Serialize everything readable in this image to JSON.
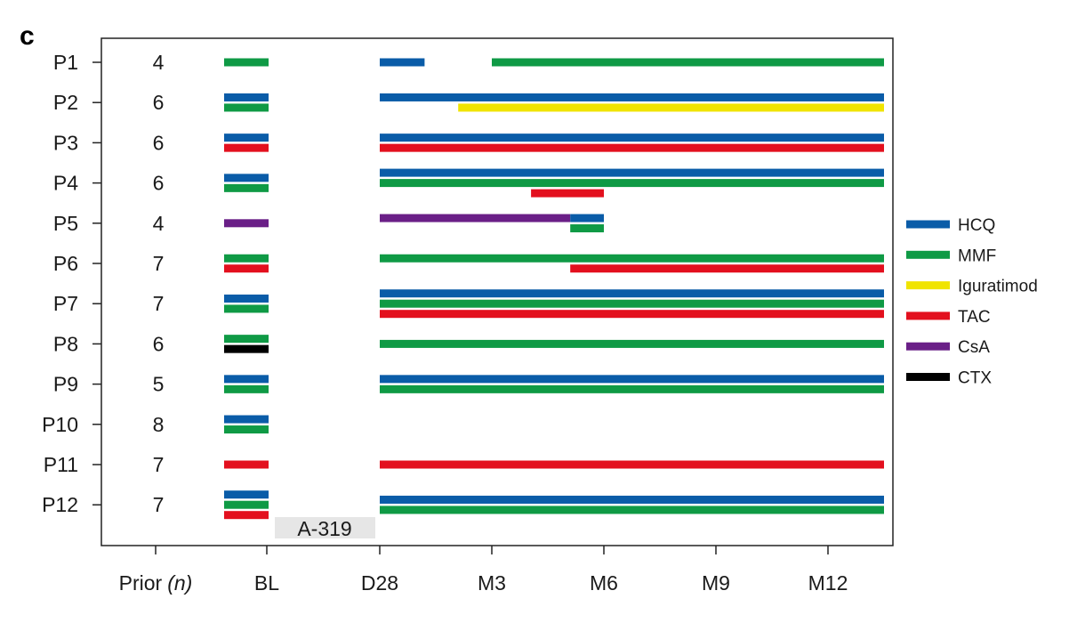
{
  "panel_label": "c",
  "chart_data": {
    "type": "timeline",
    "x_ticks": [
      "BL",
      "D28",
      "M3",
      "M6",
      "M9",
      "M12"
    ],
    "prior_label": "Prior",
    "prior_var": "(n)",
    "intervention_band": {
      "label": "A-319",
      "from": "BL",
      "to": "D28"
    },
    "colors": {
      "HCQ": "#0a5ca8",
      "MMF": "#0f9a45",
      "Iguratimod": "#f0e400",
      "TAC": "#e3101e",
      "CsA": "#6a1f87",
      "CTX": "#000000"
    },
    "legend": [
      "HCQ",
      "MMF",
      "Iguratimod",
      "TAC",
      "CsA",
      "CTX"
    ],
    "patients": [
      {
        "id": "P1",
        "prior_n": "4",
        "baseline": [
          "MMF"
        ],
        "treatments": [
          {
            "drug": "HCQ",
            "start": 0,
            "end": 0.4
          },
          {
            "drug": "MMF",
            "start": 1.0,
            "end": 4.5
          }
        ]
      },
      {
        "id": "P2",
        "prior_n": "6",
        "baseline": [
          "HCQ",
          "MMF"
        ],
        "treatments": [
          {
            "drug": "HCQ",
            "start": 0,
            "end": 4.5
          },
          {
            "drug": "Iguratimod",
            "start": 0.7,
            "end": 4.5
          }
        ]
      },
      {
        "id": "P3",
        "prior_n": "6",
        "baseline": [
          "HCQ",
          "TAC"
        ],
        "treatments": [
          {
            "drug": "HCQ",
            "start": 0,
            "end": 4.5
          },
          {
            "drug": "TAC",
            "start": 0,
            "end": 4.5
          }
        ]
      },
      {
        "id": "P4",
        "prior_n": "6",
        "baseline": [
          "HCQ",
          "MMF"
        ],
        "treatments": [
          {
            "drug": "HCQ",
            "start": 0,
            "end": 4.5
          },
          {
            "drug": "MMF",
            "start": 0,
            "end": 4.5
          },
          {
            "drug": "TAC",
            "start": 1.35,
            "end": 2.0
          }
        ]
      },
      {
        "id": "P5",
        "prior_n": "4",
        "baseline": [
          "CsA"
        ],
        "treatments": [
          {
            "drug": "CsA",
            "start": 0,
            "end": 1.7
          },
          {
            "drug": "HCQ",
            "start": 1.7,
            "end": 2.0
          },
          {
            "drug": "MMF",
            "start": 1.7,
            "end": 2.0
          }
        ]
      },
      {
        "id": "P6",
        "prior_n": "7",
        "baseline": [
          "MMF",
          "TAC"
        ],
        "treatments": [
          {
            "drug": "MMF",
            "start": 0,
            "end": 4.5
          },
          {
            "drug": "TAC",
            "start": 1.7,
            "end": 4.5
          }
        ]
      },
      {
        "id": "P7",
        "prior_n": "7",
        "baseline": [
          "HCQ",
          "MMF"
        ],
        "treatments": [
          {
            "drug": "HCQ",
            "start": 0,
            "end": 4.5
          },
          {
            "drug": "MMF",
            "start": 0,
            "end": 4.5
          },
          {
            "drug": "TAC",
            "start": 0,
            "end": 4.5
          }
        ]
      },
      {
        "id": "P8",
        "prior_n": "6",
        "baseline": [
          "MMF",
          "CTX"
        ],
        "treatments": [
          {
            "drug": "MMF",
            "start": 0,
            "end": 4.5
          }
        ]
      },
      {
        "id": "P9",
        "prior_n": "5",
        "baseline": [
          "HCQ",
          "MMF"
        ],
        "treatments": [
          {
            "drug": "HCQ",
            "start": 0,
            "end": 4.5
          },
          {
            "drug": "MMF",
            "start": 0,
            "end": 4.5
          }
        ]
      },
      {
        "id": "P10",
        "prior_n": "8",
        "baseline": [
          "HCQ",
          "MMF"
        ],
        "treatments": []
      },
      {
        "id": "P11",
        "prior_n": "7",
        "baseline": [
          "TAC"
        ],
        "treatments": [
          {
            "drug": "TAC",
            "start": 0,
            "end": 4.5
          }
        ]
      },
      {
        "id": "P12",
        "prior_n": "7",
        "baseline": [
          "HCQ",
          "MMF",
          "TAC"
        ],
        "treatments": [
          {
            "drug": "HCQ",
            "start": 0,
            "end": 4.5
          },
          {
            "drug": "MMF",
            "start": 0,
            "end": 4.5
          }
        ]
      }
    ]
  }
}
